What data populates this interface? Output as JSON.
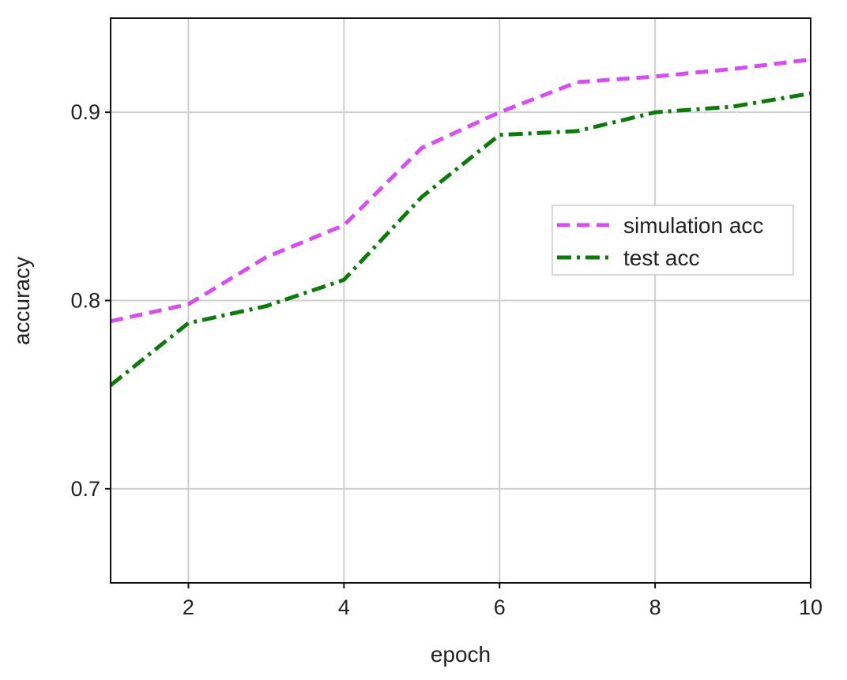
{
  "chart_data": {
    "type": "line",
    "title": "",
    "xlabel": "epoch",
    "ylabel": "accuracy",
    "xlim": [
      1,
      10
    ],
    "ylim": [
      0.65,
      0.95
    ],
    "xticks": [
      2,
      4,
      6,
      8,
      10
    ],
    "yticks": [
      0.7,
      0.8,
      0.9
    ],
    "xtick_labels": [
      "2",
      "4",
      "6",
      "8",
      "10"
    ],
    "ytick_labels": [
      "0.7",
      "0.8",
      "0.9"
    ],
    "grid": true,
    "legend_position": "center-right",
    "x": [
      1,
      2,
      3,
      4,
      5,
      6,
      7,
      8,
      9,
      10
    ],
    "series": [
      {
        "name": "simulation acc",
        "color": "#d64ef0",
        "line_style": "dashed",
        "values": [
          0.789,
          0.798,
          0.823,
          0.84,
          0.881,
          0.9,
          0.916,
          0.919,
          0.923,
          0.928
        ]
      },
      {
        "name": "test acc",
        "color": "#0b7a0b",
        "line_style": "dash-dot",
        "values": [
          0.755,
          0.788,
          0.797,
          0.811,
          0.855,
          0.888,
          0.89,
          0.9,
          0.903,
          0.91
        ]
      }
    ]
  }
}
